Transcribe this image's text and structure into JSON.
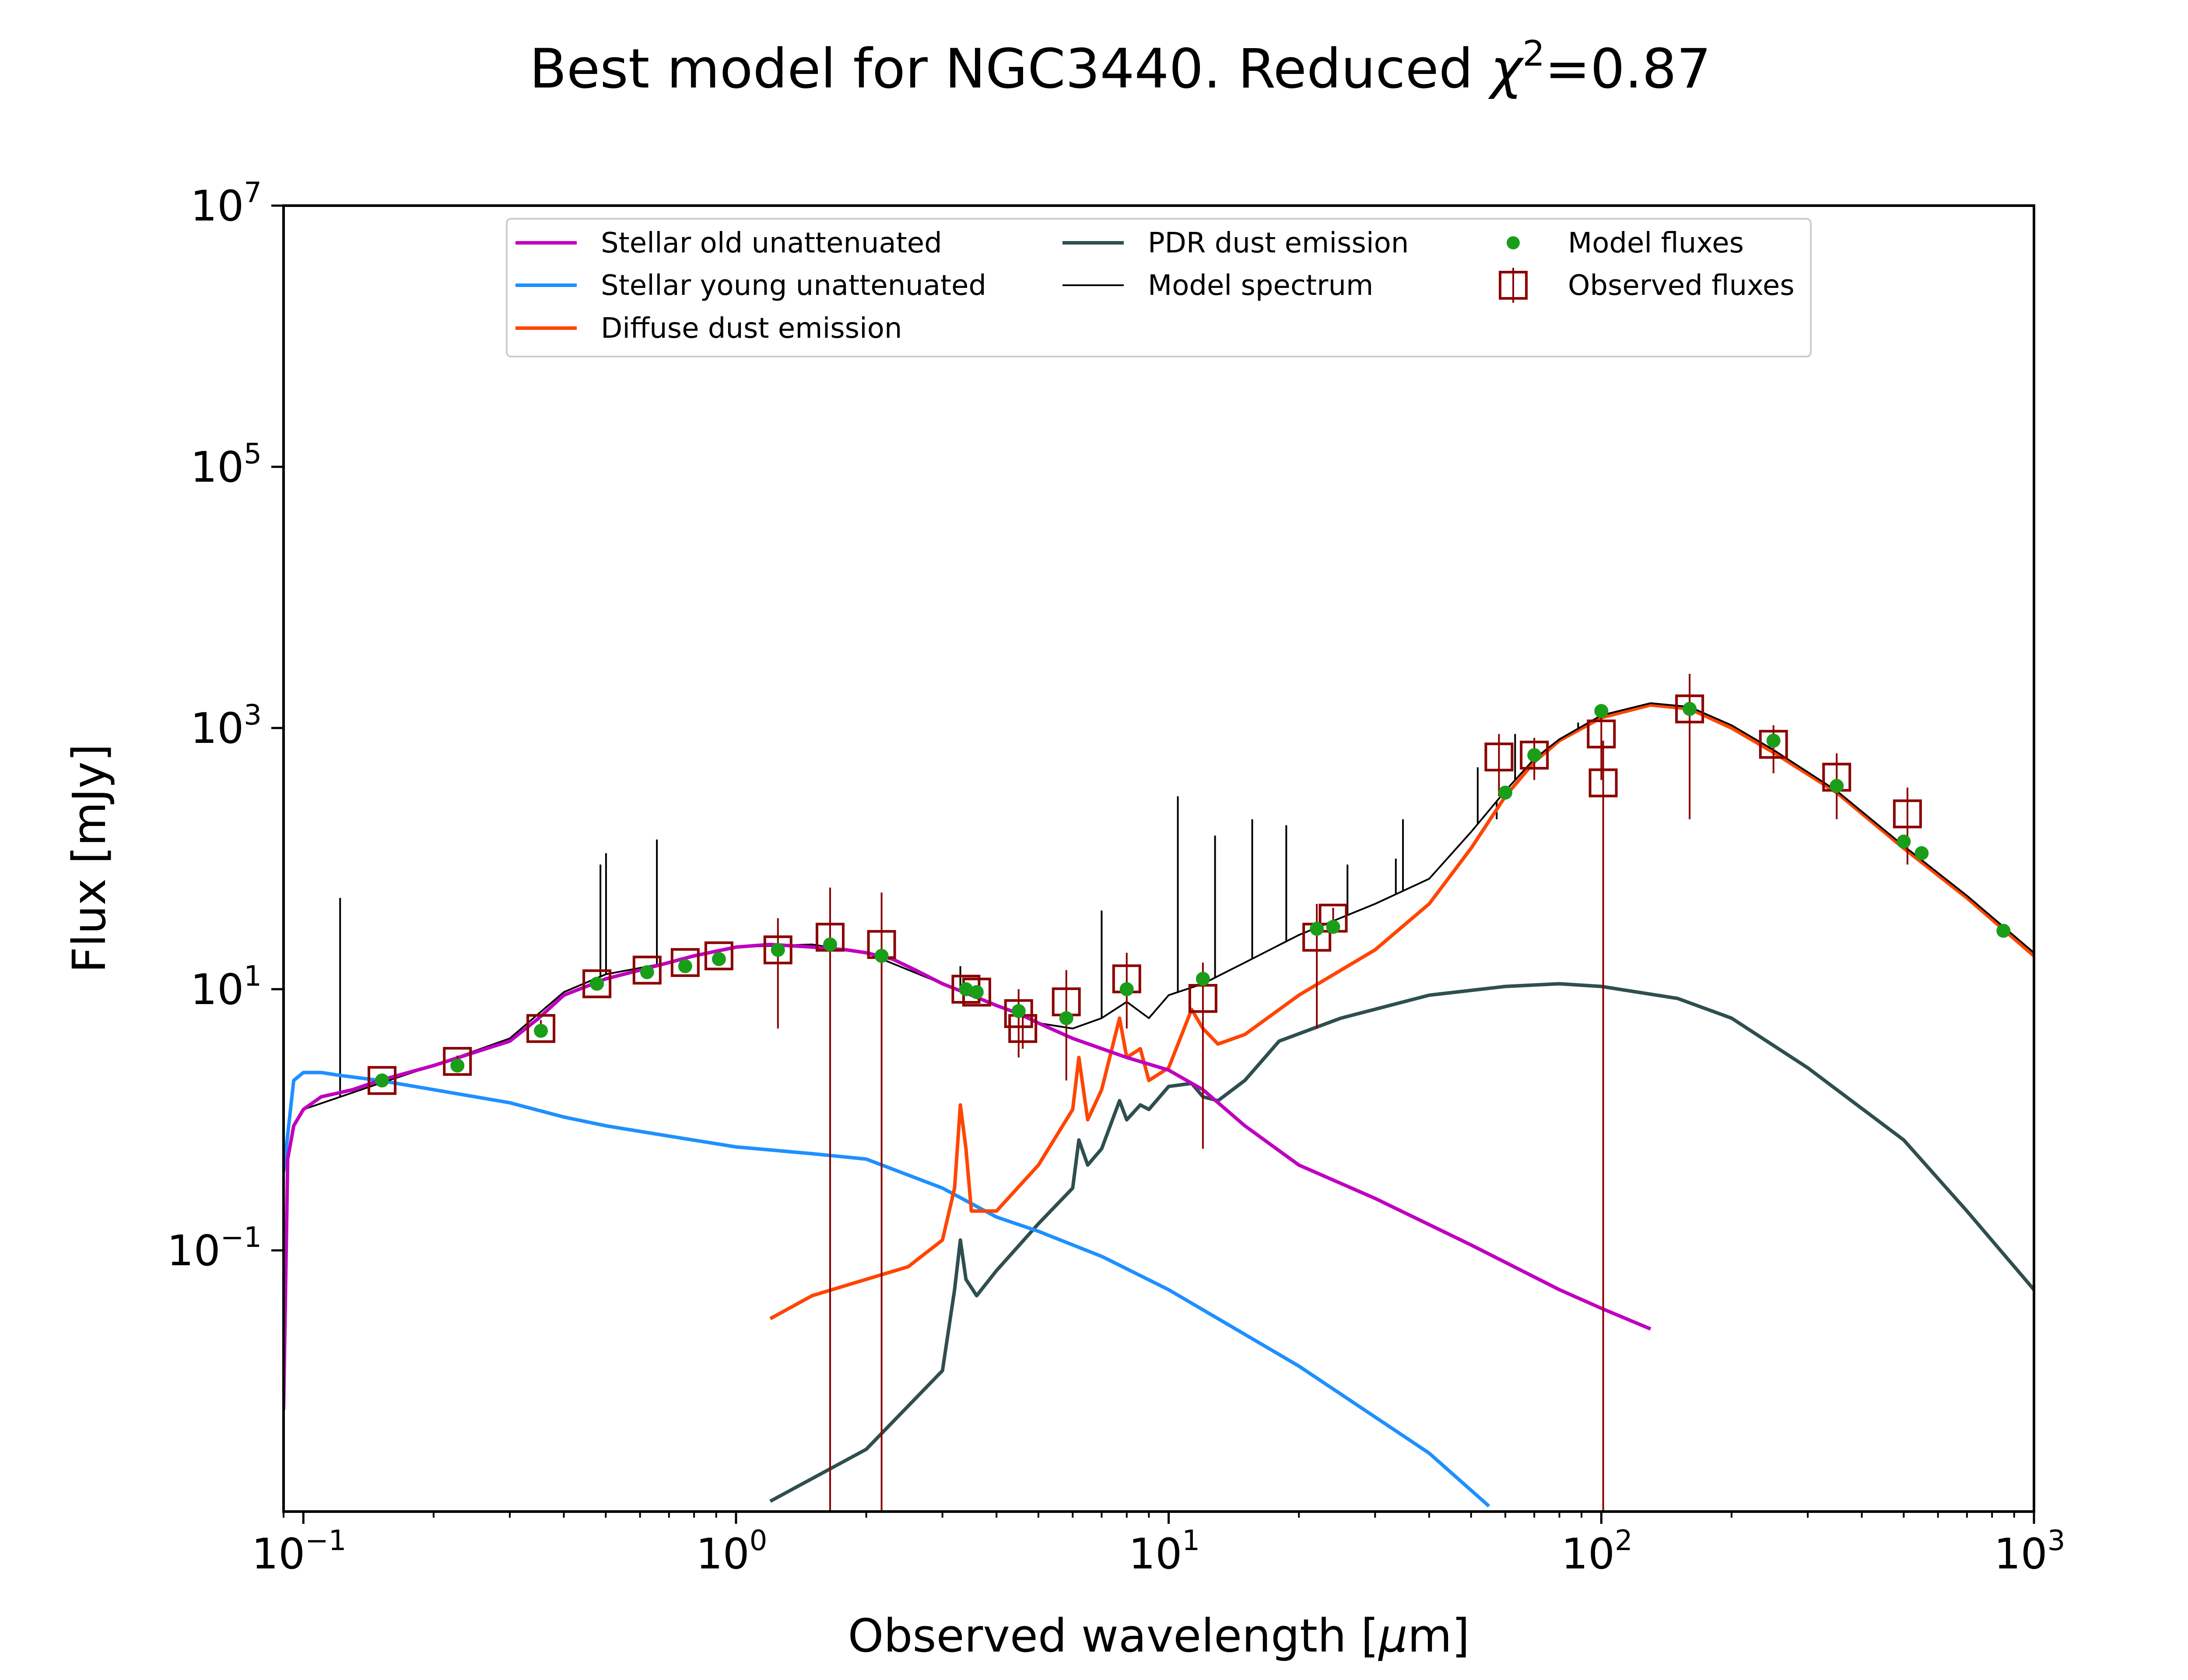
{
  "chart_data": {
    "type": "line",
    "title_prefix": "Best model for NGC3440. Reduced ",
    "title_chi": "χ",
    "title_chi_exp": "2",
    "title_suffix": "=0.87",
    "xlabel_prefix": "Observed wavelength [",
    "xlabel_mu": "μ",
    "xlabel_suffix": "m]",
    "ylabel": "Flux [mJy]",
    "xscale": "log",
    "yscale": "log",
    "xlim": [
      0.09,
      1000
    ],
    "ylim": [
      0.001,
      10000000
    ],
    "x_ticks": [
      {
        "value": 0.1,
        "base": "10",
        "exp": "−1"
      },
      {
        "value": 1,
        "base": "10",
        "exp": "0"
      },
      {
        "value": 10,
        "base": "10",
        "exp": "1"
      },
      {
        "value": 100,
        "base": "10",
        "exp": "2"
      },
      {
        "value": 1000,
        "base": "10",
        "exp": "3"
      }
    ],
    "y_ticks": [
      {
        "value": 0.1,
        "base": "10",
        "exp": "−1"
      },
      {
        "value": 10,
        "base": "10",
        "exp": "1"
      },
      {
        "value": 1000,
        "base": "10",
        "exp": "3"
      },
      {
        "value": 100000,
        "base": "10",
        "exp": "5"
      },
      {
        "value": 10000000,
        "base": "10",
        "exp": "7"
      }
    ],
    "legend_position": "upper center",
    "colors": {
      "stellar_old": "#bf00bf",
      "stellar_young": "#1e90ff",
      "diffuse_dust": "#ff4500",
      "pdr_dust": "#2f4f4f",
      "model_spectrum": "#000000",
      "model_fluxes": "#1a9e1a",
      "observed": "#8b0000"
    },
    "series": [
      {
        "name": "Stellar old unattenuated",
        "key": "stellar_old",
        "points": [
          [
            0.09,
            0.006
          ],
          [
            0.092,
            0.5
          ],
          [
            0.095,
            0.9
          ],
          [
            0.1,
            1.2
          ],
          [
            0.11,
            1.5
          ],
          [
            0.12,
            1.6
          ],
          [
            0.13,
            1.7
          ],
          [
            0.15,
            2.0
          ],
          [
            0.2,
            2.6
          ],
          [
            0.25,
            3.3
          ],
          [
            0.3,
            4.0
          ],
          [
            0.35,
            6.0
          ],
          [
            0.4,
            9.0
          ],
          [
            0.5,
            12
          ],
          [
            0.6,
            14
          ],
          [
            0.7,
            16
          ],
          [
            0.8,
            18
          ],
          [
            1.0,
            21
          ],
          [
            1.2,
            22
          ],
          [
            1.5,
            21
          ],
          [
            1.8,
            20
          ],
          [
            2.0,
            19
          ],
          [
            2.3,
            17
          ],
          [
            2.6,
            14
          ],
          [
            3.0,
            11
          ],
          [
            3.5,
            9.0
          ],
          [
            4.0,
            7.5
          ],
          [
            4.5,
            6.5
          ],
          [
            5.0,
            5.5
          ],
          [
            6.0,
            4.2
          ],
          [
            8.0,
            3.0
          ],
          [
            10,
            2.4
          ],
          [
            12,
            1.7
          ],
          [
            15,
            0.9
          ],
          [
            20,
            0.45
          ],
          [
            30,
            0.25
          ],
          [
            50,
            0.11
          ],
          [
            80,
            0.05
          ],
          [
            100,
            0.036
          ],
          [
            130,
            0.025
          ]
        ]
      },
      {
        "name": "Stellar young unattenuated",
        "key": "stellar_young",
        "points": [
          [
            0.09,
            0.4
          ],
          [
            0.095,
            2.0
          ],
          [
            0.1,
            2.3
          ],
          [
            0.11,
            2.3
          ],
          [
            0.12,
            2.2
          ],
          [
            0.15,
            2.0
          ],
          [
            0.2,
            1.7
          ],
          [
            0.3,
            1.35
          ],
          [
            0.4,
            1.05
          ],
          [
            0.5,
            0.9
          ],
          [
            0.7,
            0.75
          ],
          [
            1.0,
            0.62
          ],
          [
            1.5,
            0.55
          ],
          [
            2.0,
            0.5
          ],
          [
            3.0,
            0.3
          ],
          [
            4.0,
            0.18
          ],
          [
            5.0,
            0.14
          ],
          [
            7.0,
            0.09
          ],
          [
            10,
            0.05
          ],
          [
            20,
            0.013
          ],
          [
            40,
            0.0028
          ],
          [
            55,
            0.0011
          ]
        ]
      },
      {
        "name": "Diffuse dust emission",
        "key": "diffuse_dust",
        "points": [
          [
            1.2,
            0.03
          ],
          [
            1.5,
            0.045
          ],
          [
            2.0,
            0.06
          ],
          [
            2.5,
            0.075
          ],
          [
            3.0,
            0.12
          ],
          [
            3.2,
            0.3
          ],
          [
            3.3,
            1.3
          ],
          [
            3.4,
            0.6
          ],
          [
            3.5,
            0.2
          ],
          [
            4.0,
            0.2
          ],
          [
            5.0,
            0.45
          ],
          [
            6.0,
            1.2
          ],
          [
            6.2,
            3.0
          ],
          [
            6.5,
            1.0
          ],
          [
            7.0,
            1.7
          ],
          [
            7.7,
            6.0
          ],
          [
            8.0,
            3.0
          ],
          [
            8.6,
            3.5
          ],
          [
            9.0,
            2.0
          ],
          [
            10,
            2.5
          ],
          [
            11.3,
            7.0
          ],
          [
            12,
            5.0
          ],
          [
            13,
            3.8
          ],
          [
            15,
            4.5
          ],
          [
            20,
            9.0
          ],
          [
            30,
            20
          ],
          [
            40,
            45
          ],
          [
            50,
            120
          ],
          [
            60,
            300
          ],
          [
            70,
            550
          ],
          [
            80,
            800
          ],
          [
            100,
            1200
          ],
          [
            130,
            1500
          ],
          [
            160,
            1400
          ],
          [
            200,
            1000
          ],
          [
            250,
            650
          ],
          [
            350,
            320
          ],
          [
            500,
            120
          ],
          [
            700,
            50
          ],
          [
            1000,
            18
          ]
        ]
      },
      {
        "name": "PDR dust emission",
        "key": "pdr_dust",
        "points": [
          [
            1.2,
            0.0012
          ],
          [
            2.0,
            0.003
          ],
          [
            3.0,
            0.012
          ],
          [
            3.2,
            0.05
          ],
          [
            3.3,
            0.12
          ],
          [
            3.4,
            0.06
          ],
          [
            3.6,
            0.045
          ],
          [
            4.0,
            0.07
          ],
          [
            5.0,
            0.16
          ],
          [
            6.0,
            0.3
          ],
          [
            6.2,
            0.7
          ],
          [
            6.5,
            0.45
          ],
          [
            7.0,
            0.6
          ],
          [
            7.7,
            1.4
          ],
          [
            8.0,
            1.0
          ],
          [
            8.6,
            1.3
          ],
          [
            9.0,
            1.2
          ],
          [
            10,
            1.8
          ],
          [
            11.3,
            1.9
          ],
          [
            12,
            1.5
          ],
          [
            13,
            1.4
          ],
          [
            15,
            2.0
          ],
          [
            18,
            4.0
          ],
          [
            25,
            6.0
          ],
          [
            40,
            9.0
          ],
          [
            60,
            10.5
          ],
          [
            80,
            11
          ],
          [
            100,
            10.5
          ],
          [
            150,
            8.5
          ],
          [
            200,
            6.0
          ],
          [
            300,
            2.5
          ],
          [
            500,
            0.7
          ],
          [
            700,
            0.2
          ],
          [
            1000,
            0.05
          ]
        ]
      },
      {
        "name": "Model spectrum",
        "key": "model_spectrum",
        "points": [
          [
            0.1,
            1.2
          ],
          [
            0.15,
            1.9
          ],
          [
            0.2,
            2.6
          ],
          [
            0.3,
            4.2
          ],
          [
            0.4,
            9.5
          ],
          [
            0.5,
            13
          ],
          [
            0.7,
            16
          ],
          [
            1.0,
            21
          ],
          [
            1.5,
            22
          ],
          [
            2.0,
            19
          ],
          [
            3.0,
            11
          ],
          [
            4.0,
            7.5
          ],
          [
            5.0,
            5.5
          ],
          [
            6.0,
            5.0
          ],
          [
            7.0,
            6.0
          ],
          [
            8.0,
            8.0
          ],
          [
            9.0,
            6.0
          ],
          [
            10,
            9.0
          ],
          [
            12,
            11
          ],
          [
            15,
            16
          ],
          [
            20,
            26
          ],
          [
            30,
            45
          ],
          [
            40,
            70
          ],
          [
            50,
            160
          ],
          [
            60,
            330
          ],
          [
            70,
            580
          ],
          [
            80,
            820
          ],
          [
            100,
            1250
          ],
          [
            130,
            1550
          ],
          [
            160,
            1450
          ],
          [
            200,
            1050
          ],
          [
            250,
            680
          ],
          [
            350,
            330
          ],
          [
            500,
            125
          ],
          [
            700,
            52
          ],
          [
            1000,
            19
          ]
        ]
      }
    ],
    "emission_lines": [
      [
        0.1216,
        50
      ],
      [
        0.486,
        90
      ],
      [
        0.5007,
        110
      ],
      [
        0.6563,
        140
      ],
      [
        3.3,
        15
      ],
      [
        7.0,
        40
      ],
      [
        10.5,
        300
      ],
      [
        12.8,
        150
      ],
      [
        15.6,
        200
      ],
      [
        18.7,
        180
      ],
      [
        25.9,
        90
      ],
      [
        33.5,
        100
      ],
      [
        34.8,
        200
      ],
      [
        51.8,
        500
      ],
      [
        57.3,
        200
      ],
      [
        63.2,
        900
      ],
      [
        88.4,
        1100
      ]
    ],
    "model_fluxes": {
      "name": "Model fluxes",
      "points": [
        [
          0.152,
          2.0
        ],
        [
          0.227,
          2.6
        ],
        [
          0.354,
          4.8
        ],
        [
          0.477,
          11
        ],
        [
          0.623,
          13.5
        ],
        [
          0.763,
          15
        ],
        [
          0.913,
          17
        ],
        [
          1.25,
          20
        ],
        [
          1.65,
          22
        ],
        [
          2.17,
          18
        ],
        [
          3.4,
          10
        ],
        [
          3.6,
          9.5
        ],
        [
          4.5,
          6.8
        ],
        [
          5.8,
          6.0
        ],
        [
          8.0,
          10
        ],
        [
          12,
          12
        ],
        [
          22,
          29
        ],
        [
          24,
          30
        ],
        [
          60,
          320
        ],
        [
          70,
          620
        ],
        [
          100,
          1350
        ],
        [
          160,
          1400
        ],
        [
          250,
          800
        ],
        [
          350,
          360
        ],
        [
          500,
          135
        ],
        [
          550,
          110
        ],
        [
          850,
          28
        ]
      ]
    },
    "observed_fluxes": {
      "name": "Observed fluxes",
      "points": [
        {
          "x": 0.152,
          "y": 2.0,
          "lo": 1.8,
          "hi": 2.2
        },
        {
          "x": 0.227,
          "y": 2.8,
          "lo": 2.5,
          "hi": 3.1
        },
        {
          "x": 0.354,
          "y": 5.0,
          "lo": 4.3,
          "hi": 5.8
        },
        {
          "x": 0.477,
          "y": 11,
          "lo": 10,
          "hi": 12
        },
        {
          "x": 0.623,
          "y": 14,
          "lo": 13,
          "hi": 15
        },
        {
          "x": 0.763,
          "y": 16,
          "lo": 15,
          "hi": 17
        },
        {
          "x": 0.913,
          "y": 18,
          "lo": 17,
          "hi": 19
        },
        {
          "x": 1.25,
          "y": 20,
          "lo": 5,
          "hi": 35
        },
        {
          "x": 1.65,
          "y": 25,
          "lo": 0.001,
          "hi": 60
        },
        {
          "x": 2.17,
          "y": 22,
          "lo": 0.001,
          "hi": 55
        },
        {
          "x": 3.4,
          "y": 10,
          "lo": 9,
          "hi": 11
        },
        {
          "x": 3.6,
          "y": 9.5,
          "lo": 8.5,
          "hi": 10.5
        },
        {
          "x": 4.5,
          "y": 6.5,
          "lo": 3,
          "hi": 10
        },
        {
          "x": 4.6,
          "y": 5.0,
          "lo": 3.5,
          "hi": 6.5
        },
        {
          "x": 5.8,
          "y": 8.0,
          "lo": 2.0,
          "hi": 14
        },
        {
          "x": 8.0,
          "y": 12,
          "lo": 5,
          "hi": 19
        },
        {
          "x": 12,
          "y": 8.5,
          "lo": 0.6,
          "hi": 16
        },
        {
          "x": 22,
          "y": 25,
          "lo": 5,
          "hi": 45
        },
        {
          "x": 24,
          "y": 35,
          "lo": 28,
          "hi": 42
        },
        {
          "x": 58,
          "y": 600,
          "lo": 300,
          "hi": 900
        },
        {
          "x": 70,
          "y": 620,
          "lo": 400,
          "hi": 840
        },
        {
          "x": 100,
          "y": 900,
          "lo": 400,
          "hi": 1400
        },
        {
          "x": 101,
          "y": 380,
          "lo": 0.001,
          "hi": 800
        },
        {
          "x": 160,
          "y": 1400,
          "lo": 200,
          "hi": 2600
        },
        {
          "x": 250,
          "y": 750,
          "lo": 450,
          "hi": 1050
        },
        {
          "x": 350,
          "y": 420,
          "lo": 200,
          "hi": 640
        },
        {
          "x": 510,
          "y": 220,
          "lo": 90,
          "hi": 350
        }
      ]
    },
    "legend": [
      {
        "label": "Stellar old unattenuated",
        "key": "stellar_old",
        "kind": "line"
      },
      {
        "label": "Stellar young unattenuated",
        "key": "stellar_young",
        "kind": "line"
      },
      {
        "label": "Diffuse dust emission",
        "key": "diffuse_dust",
        "kind": "line"
      },
      {
        "label": "PDR dust emission",
        "key": "pdr_dust",
        "kind": "line"
      },
      {
        "label": "Model spectrum",
        "key": "model_spectrum",
        "kind": "thinline"
      },
      {
        "label": "Model fluxes",
        "key": "model_fluxes",
        "kind": "dot"
      },
      {
        "label": "Observed fluxes",
        "key": "observed",
        "kind": "errsquare"
      }
    ]
  }
}
